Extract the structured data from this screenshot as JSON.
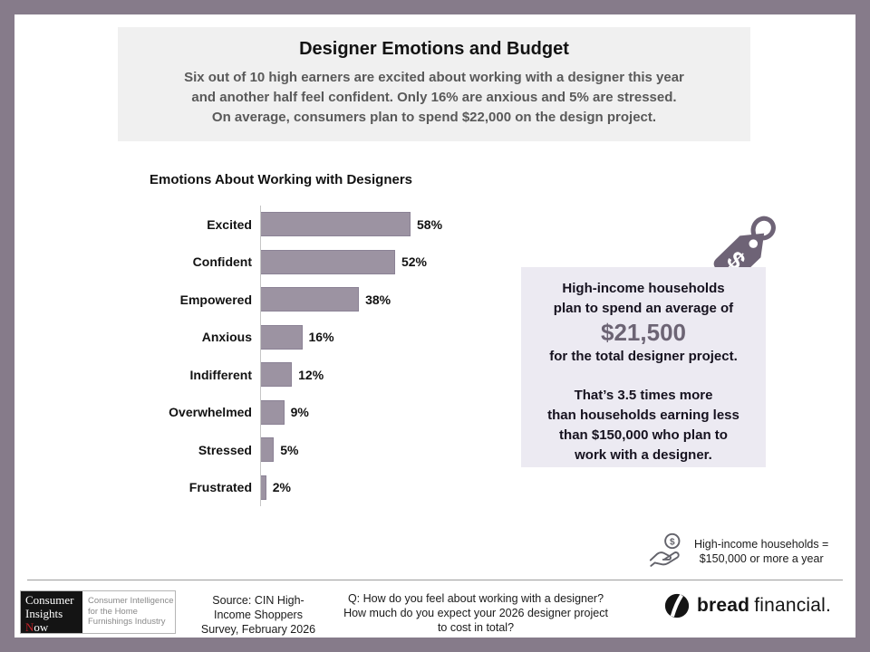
{
  "colors": {
    "frame": "#867b8a",
    "bar_fill": "#9c93a2",
    "bar_border": "#8b8295",
    "header_bg": "#f0f0f0",
    "callout_bg": "#eceaf2",
    "amount_text": "#6c6474",
    "tag_icon": "#6e6376",
    "subtitle_text": "#595959"
  },
  "header": {
    "title": "Designer Emotions and Budget",
    "subtitle_lines": [
      "Six out of 10 high earners are excited about working with a designer this year",
      "and another half feel confident. Only 16% are anxious and 5% are stressed.",
      "On average, consumers plan to spend $22,000 on the design project."
    ]
  },
  "chart_data": {
    "type": "bar",
    "orientation": "horizontal",
    "title": "Emotions About Working with Designers",
    "categories": [
      "Excited",
      "Confident",
      "Empowered",
      "Anxious",
      "Indifferent",
      "Overwhelmed",
      "Stressed",
      "Frustrated"
    ],
    "values": [
      58,
      52,
      38,
      16,
      12,
      9,
      5,
      2
    ],
    "value_suffix": "%",
    "xlim": [
      0,
      60
    ],
    "grid": false,
    "legend": "none",
    "data_labels": "outside-end"
  },
  "callout": {
    "intro_lines": [
      "High-income households",
      "plan to spend an average of"
    ],
    "amount": "$21,500",
    "after_amount": "for the total designer project.",
    "body_lines": [
      "That’s 3.5 times more",
      "than households earning less",
      "than $150,000 who plan to",
      "work with a designer."
    ]
  },
  "tag_icon_dollar": "$",
  "legend_note": {
    "lines": [
      "High-income households =",
      "$150,000 or more a year"
    ],
    "coin_dollar": "$"
  },
  "footer": {
    "cin_logo": {
      "line1": "Consumer",
      "line2": "Insights",
      "line3_first": "N",
      "line3_rest": "ow",
      "tagline_lines": [
        "Consumer Intelligence",
        "for the Home",
        "Furnishings Industry"
      ]
    },
    "source_lines": [
      "Source: CIN High-",
      "Income Shoppers",
      "Survey, February 2026"
    ],
    "question_lines": [
      "Q: How do you feel about working with a designer?",
      "How much do you expect your 2026 designer project",
      "to cost in total?"
    ],
    "brand": {
      "bold": "bread",
      "regular": "financial."
    }
  }
}
